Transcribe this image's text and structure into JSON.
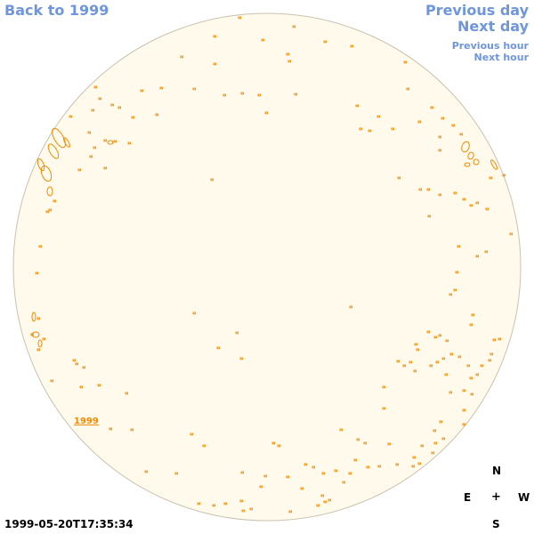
{
  "nav": {
    "back_label": "Back to 1999",
    "previous_day_label": "Previous day",
    "next_day_label": "Next day",
    "previous_hour_label": "Previous hour",
    "next_hour_label": "Next hour"
  },
  "disk": {
    "fill_color": "#fffaec",
    "border_color": "#c9c2b0",
    "feature_color": "#f08c00",
    "year_label": "1999"
  },
  "compass": {
    "n": "N",
    "e": "E",
    "center": "+",
    "w": "W",
    "s": "S"
  },
  "timestamp": "1999-05-20T17:35:34"
}
